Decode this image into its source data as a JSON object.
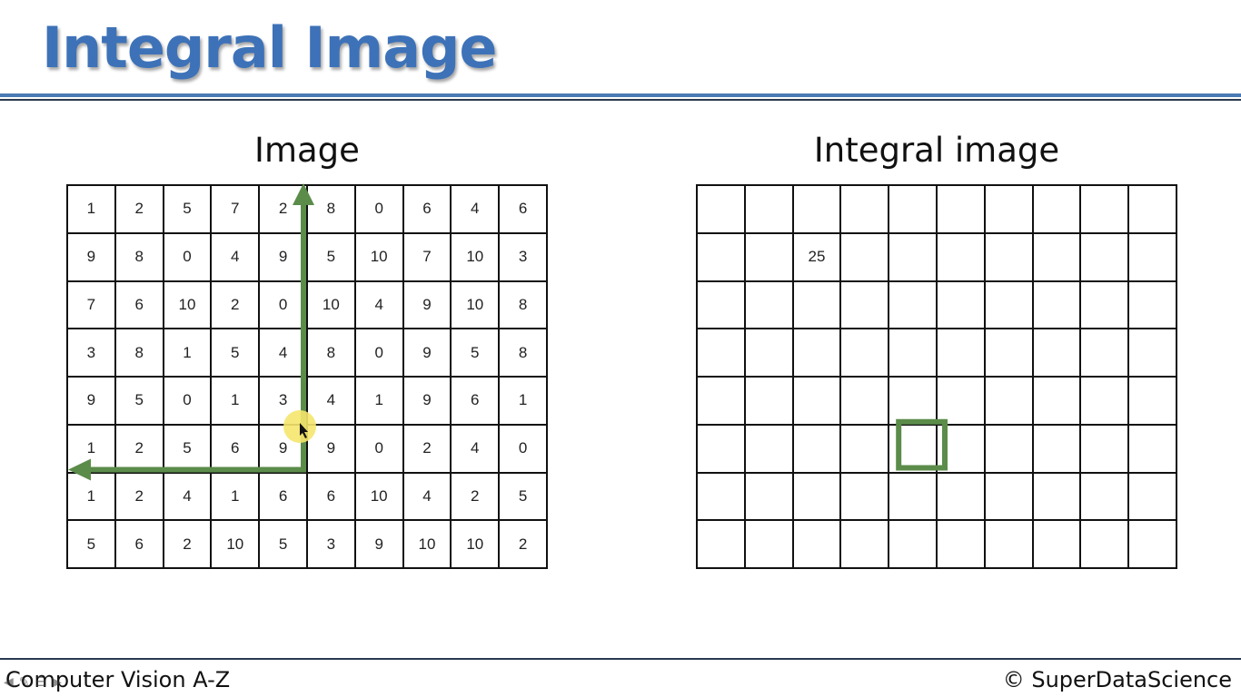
{
  "slide": {
    "title": "Integral Image",
    "image_panel": {
      "heading": "Image",
      "rows": [
        [
          1,
          2,
          5,
          7,
          2,
          8,
          0,
          6,
          4,
          6
        ],
        [
          9,
          8,
          0,
          4,
          9,
          5,
          10,
          7,
          10,
          3
        ],
        [
          7,
          6,
          10,
          2,
          0,
          10,
          4,
          9,
          10,
          8
        ],
        [
          3,
          8,
          1,
          5,
          4,
          8,
          0,
          9,
          5,
          8
        ],
        [
          9,
          5,
          0,
          1,
          3,
          4,
          1,
          9,
          6,
          1
        ],
        [
          1,
          2,
          5,
          6,
          9,
          9,
          0,
          2,
          4,
          0
        ],
        [
          1,
          2,
          4,
          1,
          6,
          6,
          10,
          4,
          2,
          5
        ],
        [
          5,
          6,
          2,
          10,
          5,
          3,
          9,
          10,
          10,
          2
        ]
      ]
    },
    "integral_panel": {
      "heading": "Integral image",
      "rows": [
        [
          "",
          "",
          "",
          "",
          "",
          "",
          "",
          "",
          "",
          ""
        ],
        [
          "",
          "",
          "25",
          "",
          "",
          "",
          "",
          "",
          "",
          ""
        ],
        [
          "",
          "",
          "",
          "",
          "",
          "",
          "",
          "",
          "",
          ""
        ],
        [
          "",
          "",
          "",
          "",
          "",
          "",
          "",
          "",
          "",
          ""
        ],
        [
          "",
          "",
          "",
          "",
          "",
          "",
          "",
          "",
          "",
          ""
        ],
        [
          "",
          "",
          "",
          "",
          "",
          "",
          "",
          "",
          "",
          ""
        ],
        [
          "",
          "",
          "",
          "",
          "",
          "",
          "",
          "",
          "",
          ""
        ],
        [
          "",
          "",
          "",
          "",
          "",
          "",
          "",
          "",
          "",
          ""
        ]
      ],
      "highlighted_cell": {
        "row": 5,
        "col": 4
      }
    },
    "arrow_corner_cell": {
      "row": 5,
      "col": 4
    },
    "colors": {
      "title": "#3d72b8",
      "rule": "#4a7ab5",
      "arrow": "#5b8c4a",
      "pointer": "#f5e66b"
    }
  },
  "footer": {
    "course": "Computer Vision A-Z",
    "copyright": "© SuperDataScience"
  },
  "player": {
    "icons": [
      "prev-icon",
      "pen-icon",
      "menu-icon",
      "next-icon"
    ]
  }
}
